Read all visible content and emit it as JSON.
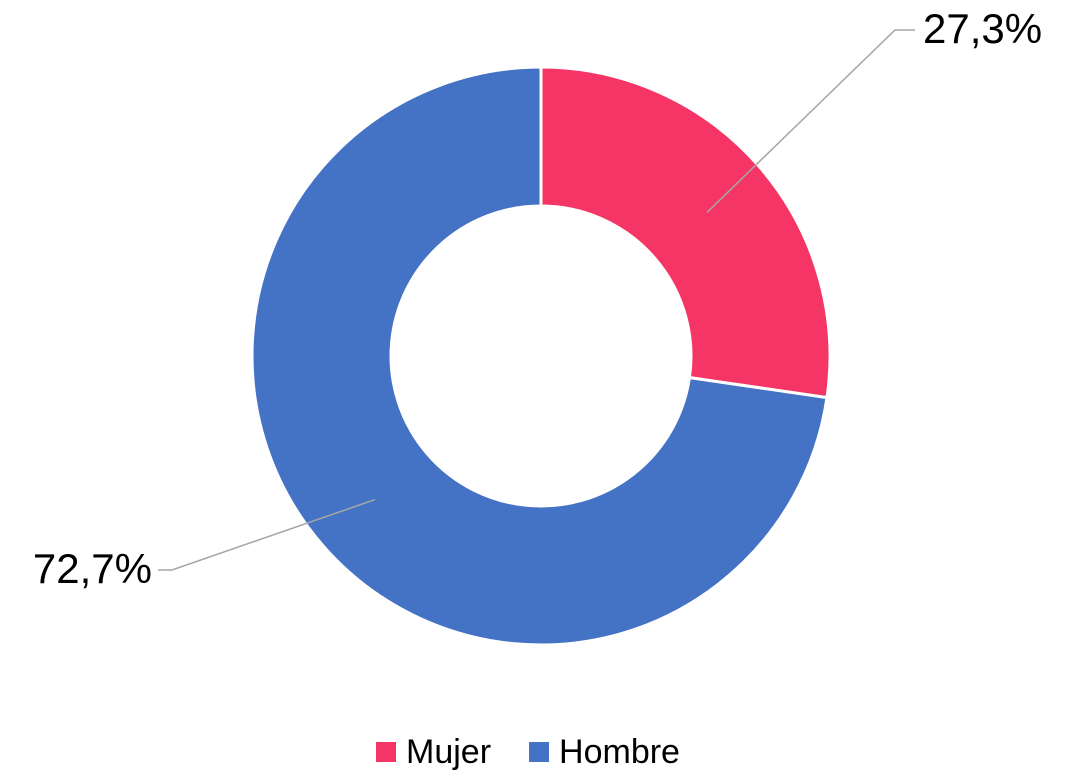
{
  "chart_data": {
    "type": "donut",
    "categories": [
      "Mujer",
      "Hombre"
    ],
    "values": [
      27.3,
      72.7
    ],
    "value_labels": [
      "27,3%",
      "72,7%"
    ],
    "colors": [
      "#f43565",
      "#4472c4"
    ],
    "legend": "bottom"
  }
}
